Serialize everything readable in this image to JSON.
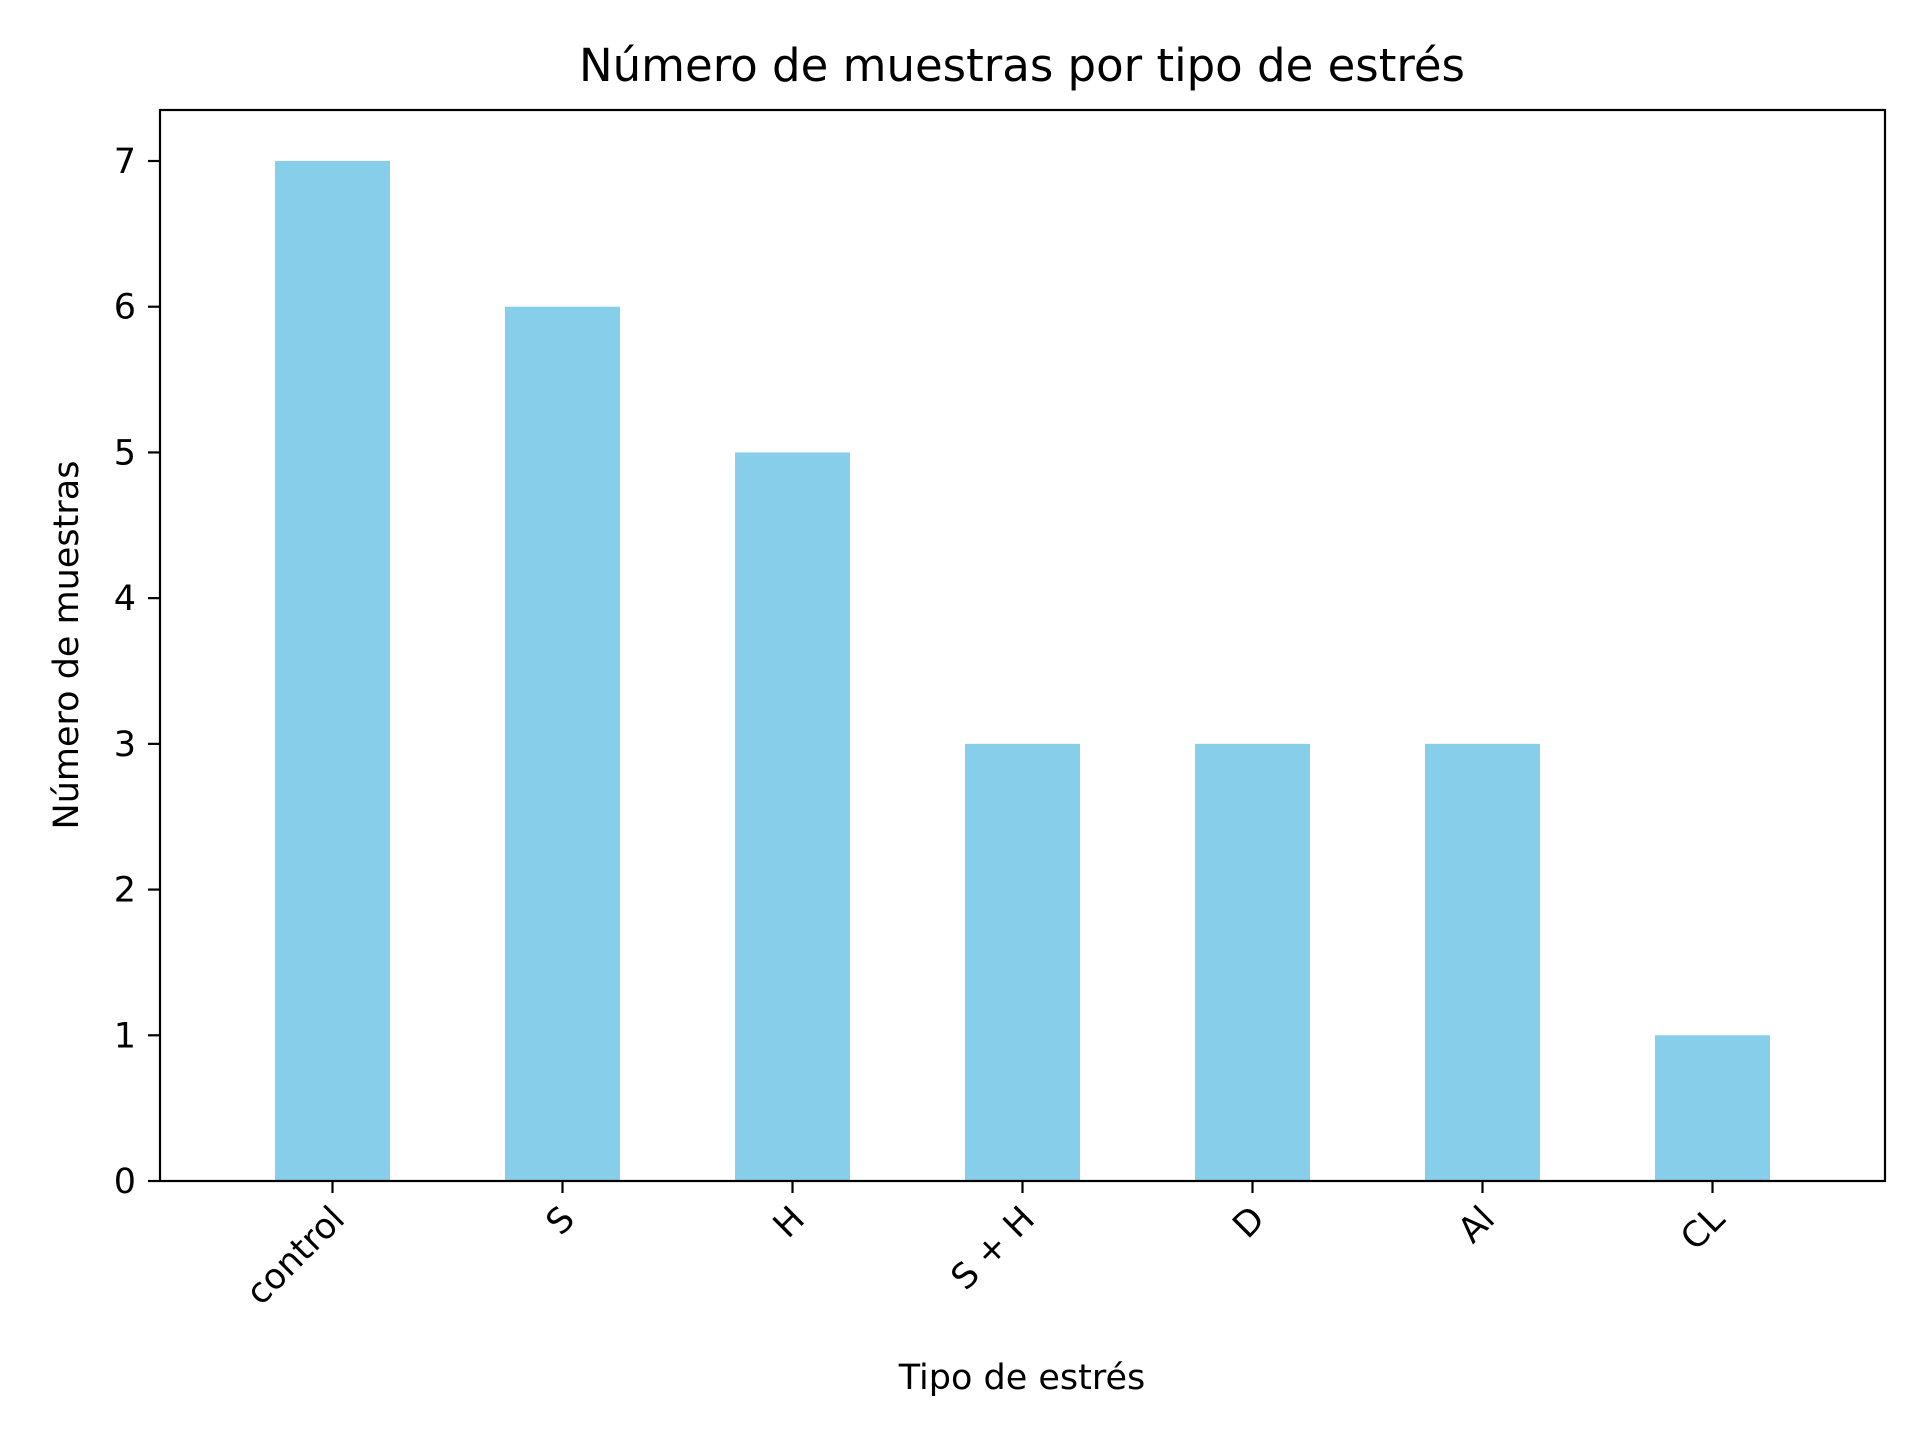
{
  "chart_data": {
    "type": "bar",
    "title": "Número de muestras por tipo de estrés",
    "xlabel": "Tipo de estrés",
    "ylabel": "Número de muestras",
    "categories": [
      "control",
      "S",
      "H",
      "S + H",
      "D",
      "Al",
      "CL"
    ],
    "values": [
      7,
      6,
      5,
      3,
      3,
      3,
      1
    ],
    "ylim": [
      0,
      7.35
    ],
    "yticks": [
      0,
      1,
      2,
      3,
      4,
      5,
      6,
      7
    ],
    "bar_color": "#87ceeb",
    "grid": false,
    "legend": null,
    "xtick_rotation": "45"
  }
}
